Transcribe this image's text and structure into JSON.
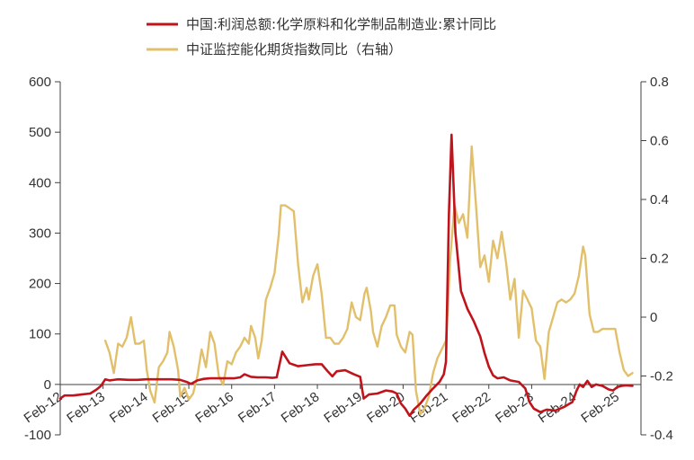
{
  "chart_data": {
    "type": "line",
    "title": "",
    "legend_placement": "top",
    "grid": false,
    "colors": {
      "series1": "#c0141c",
      "series2": "#e2c06b"
    },
    "x_axis": {
      "labels": [
        "Feb-12",
        "Feb-13",
        "Feb-14",
        "Feb-15",
        "Feb-16",
        "Feb-17",
        "Feb-18",
        "Feb-19",
        "Feb-20",
        "Feb-21",
        "Feb-22",
        "Feb-23",
        "Feb-24",
        "Feb-25"
      ],
      "range": [
        2012.0,
        2025.55
      ]
    },
    "y_left": {
      "ticks": [
        600,
        500,
        400,
        300,
        200,
        100,
        0,
        -100
      ],
      "range": [
        -100,
        600
      ]
    },
    "y_right": {
      "ticks": [
        "0.8",
        "0.6",
        "0.4",
        "0.2",
        "0",
        "-0.2",
        "-0.4"
      ],
      "range": [
        -0.4,
        0.8
      ]
    },
    "series": [
      {
        "name": "中国:利润总额:化学原料和化学制品制造业:累计同比",
        "axis": "left",
        "points": [
          [
            2012.0,
            -28
          ],
          [
            2012.1,
            -22
          ],
          [
            2012.3,
            -22
          ],
          [
            2012.5,
            -20
          ],
          [
            2012.7,
            -18
          ],
          [
            2012.85,
            -10
          ],
          [
            2012.95,
            -3
          ],
          [
            2013.05,
            10
          ],
          [
            2013.15,
            8
          ],
          [
            2013.35,
            10
          ],
          [
            2013.6,
            9
          ],
          [
            2013.8,
            9
          ],
          [
            2014.0,
            10
          ],
          [
            2014.3,
            10
          ],
          [
            2014.6,
            10
          ],
          [
            2014.8,
            9
          ],
          [
            2014.95,
            5
          ],
          [
            2015.05,
            1
          ],
          [
            2015.2,
            8
          ],
          [
            2015.35,
            11
          ],
          [
            2015.5,
            12
          ],
          [
            2015.7,
            12
          ],
          [
            2015.9,
            12
          ],
          [
            2016.05,
            12
          ],
          [
            2016.2,
            14
          ],
          [
            2016.3,
            20
          ],
          [
            2016.45,
            15
          ],
          [
            2016.6,
            14
          ],
          [
            2016.8,
            14
          ],
          [
            2016.95,
            13
          ],
          [
            2017.05,
            14
          ],
          [
            2017.18,
            65
          ],
          [
            2017.35,
            42
          ],
          [
            2017.55,
            36
          ],
          [
            2017.75,
            38
          ],
          [
            2017.95,
            40
          ],
          [
            2018.1,
            40
          ],
          [
            2018.25,
            25
          ],
          [
            2018.35,
            16
          ],
          [
            2018.45,
            26
          ],
          [
            2018.65,
            28
          ],
          [
            2018.85,
            20
          ],
          [
            2019.0,
            15
          ],
          [
            2019.08,
            -28
          ],
          [
            2019.2,
            -20
          ],
          [
            2019.4,
            -18
          ],
          [
            2019.6,
            -12
          ],
          [
            2019.75,
            -14
          ],
          [
            2019.85,
            -18
          ],
          [
            2019.95,
            -38
          ],
          [
            2020.05,
            -48
          ],
          [
            2020.15,
            -62
          ],
          [
            2020.25,
            -50
          ],
          [
            2020.4,
            -38
          ],
          [
            2020.55,
            -22
          ],
          [
            2020.7,
            -8
          ],
          [
            2020.85,
            5
          ],
          [
            2020.95,
            20
          ],
          [
            2021.0,
            45
          ],
          [
            2021.07,
            340
          ],
          [
            2021.13,
            495
          ],
          [
            2021.22,
            300
          ],
          [
            2021.35,
            185
          ],
          [
            2021.5,
            150
          ],
          [
            2021.65,
            125
          ],
          [
            2021.8,
            95
          ],
          [
            2021.9,
            62
          ],
          [
            2022.0,
            35
          ],
          [
            2022.1,
            18
          ],
          [
            2022.2,
            12
          ],
          [
            2022.35,
            14
          ],
          [
            2022.5,
            8
          ],
          [
            2022.7,
            5
          ],
          [
            2022.85,
            -8
          ],
          [
            2022.95,
            -35
          ],
          [
            2023.05,
            -48
          ],
          [
            2023.2,
            -55
          ],
          [
            2023.35,
            -50
          ],
          [
            2023.55,
            -52
          ],
          [
            2023.75,
            -45
          ],
          [
            2023.95,
            -35
          ],
          [
            2024.05,
            -12
          ],
          [
            2024.12,
            0
          ],
          [
            2024.2,
            -5
          ],
          [
            2024.3,
            7
          ],
          [
            2024.4,
            -5
          ],
          [
            2024.5,
            0
          ],
          [
            2024.65,
            -3
          ],
          [
            2024.8,
            -10
          ],
          [
            2024.9,
            -12
          ],
          [
            2025.0,
            -5
          ],
          [
            2025.1,
            -3
          ],
          [
            2025.2,
            -2
          ],
          [
            2025.35,
            -3
          ]
        ]
      },
      {
        "name": "中证监控能化期货指数同比（右轴）",
        "axis": "right",
        "points": [
          [
            2013.05,
            -0.08
          ],
          [
            2013.15,
            -0.12
          ],
          [
            2013.25,
            -0.19
          ],
          [
            2013.35,
            -0.09
          ],
          [
            2013.45,
            -0.1
          ],
          [
            2013.55,
            -0.07
          ],
          [
            2013.65,
            0.0
          ],
          [
            2013.75,
            -0.09
          ],
          [
            2013.85,
            -0.09
          ],
          [
            2013.95,
            -0.08
          ],
          [
            2014.02,
            -0.18
          ],
          [
            2014.1,
            -0.25
          ],
          [
            2014.2,
            -0.29
          ],
          [
            2014.3,
            -0.17
          ],
          [
            2014.4,
            -0.15
          ],
          [
            2014.5,
            -0.12
          ],
          [
            2014.55,
            -0.05
          ],
          [
            2014.65,
            -0.1
          ],
          [
            2014.75,
            -0.18
          ],
          [
            2014.8,
            -0.27
          ],
          [
            2014.9,
            -0.24
          ],
          [
            2015.0,
            -0.28
          ],
          [
            2015.1,
            -0.26
          ],
          [
            2015.2,
            -0.2
          ],
          [
            2015.3,
            -0.11
          ],
          [
            2015.4,
            -0.17
          ],
          [
            2015.5,
            -0.05
          ],
          [
            2015.6,
            -0.09
          ],
          [
            2015.7,
            -0.2
          ],
          [
            2015.8,
            -0.23
          ],
          [
            2015.9,
            -0.15
          ],
          [
            2016.0,
            -0.16
          ],
          [
            2016.1,
            -0.12
          ],
          [
            2016.2,
            -0.1
          ],
          [
            2016.3,
            -0.07
          ],
          [
            2016.4,
            -0.09
          ],
          [
            2016.45,
            -0.03
          ],
          [
            2016.55,
            -0.07
          ],
          [
            2016.62,
            -0.14
          ],
          [
            2016.7,
            -0.08
          ],
          [
            2016.8,
            0.06
          ],
          [
            2016.9,
            0.1
          ],
          [
            2017.0,
            0.15
          ],
          [
            2017.1,
            0.28
          ],
          [
            2017.15,
            0.38
          ],
          [
            2017.25,
            0.38
          ],
          [
            2017.35,
            0.37
          ],
          [
            2017.45,
            0.36
          ],
          [
            2017.55,
            0.18
          ],
          [
            2017.65,
            0.05
          ],
          [
            2017.75,
            0.1
          ],
          [
            2017.8,
            0.06
          ],
          [
            2017.9,
            0.14
          ],
          [
            2018.0,
            0.18
          ],
          [
            2018.1,
            0.08
          ],
          [
            2018.2,
            -0.07
          ],
          [
            2018.3,
            -0.07
          ],
          [
            2018.4,
            -0.09
          ],
          [
            2018.5,
            -0.09
          ],
          [
            2018.6,
            -0.07
          ],
          [
            2018.7,
            -0.04
          ],
          [
            2018.8,
            0.05
          ],
          [
            2018.9,
            0.0
          ],
          [
            2019.0,
            -0.01
          ],
          [
            2019.1,
            0.08
          ],
          [
            2019.15,
            0.1
          ],
          [
            2019.25,
            0.02
          ],
          [
            2019.3,
            -0.05
          ],
          [
            2019.4,
            -0.1
          ],
          [
            2019.5,
            -0.03
          ],
          [
            2019.6,
            0.0
          ],
          [
            2019.7,
            0.04
          ],
          [
            2019.8,
            0.04
          ],
          [
            2019.85,
            -0.06
          ],
          [
            2019.95,
            -0.1
          ],
          [
            2020.05,
            -0.12
          ],
          [
            2020.15,
            -0.05
          ],
          [
            2020.22,
            -0.06
          ],
          [
            2020.3,
            -0.25
          ],
          [
            2020.4,
            -0.33
          ],
          [
            2020.5,
            -0.31
          ],
          [
            2020.6,
            -0.27
          ],
          [
            2020.7,
            -0.19
          ],
          [
            2020.8,
            -0.14
          ],
          [
            2020.9,
            -0.11
          ],
          [
            2021.0,
            -0.08
          ],
          [
            2021.05,
            0.05
          ],
          [
            2021.1,
            0.2
          ],
          [
            2021.2,
            0.38
          ],
          [
            2021.3,
            0.32
          ],
          [
            2021.4,
            0.35
          ],
          [
            2021.5,
            0.27
          ],
          [
            2021.6,
            0.58
          ],
          [
            2021.7,
            0.38
          ],
          [
            2021.8,
            0.17
          ],
          [
            2021.9,
            0.21
          ],
          [
            2022.0,
            0.12
          ],
          [
            2022.1,
            0.26
          ],
          [
            2022.2,
            0.2
          ],
          [
            2022.3,
            0.29
          ],
          [
            2022.4,
            0.19
          ],
          [
            2022.5,
            0.06
          ],
          [
            2022.6,
            0.13
          ],
          [
            2022.7,
            -0.07
          ],
          [
            2022.8,
            0.09
          ],
          [
            2022.9,
            0.06
          ],
          [
            2023.0,
            0.03
          ],
          [
            2023.1,
            -0.08
          ],
          [
            2023.2,
            -0.1
          ],
          [
            2023.3,
            -0.21
          ],
          [
            2023.4,
            -0.05
          ],
          [
            2023.5,
            0.0
          ],
          [
            2023.6,
            0.05
          ],
          [
            2023.7,
            0.06
          ],
          [
            2023.8,
            0.05
          ],
          [
            2023.9,
            0.06
          ],
          [
            2024.0,
            0.08
          ],
          [
            2024.1,
            0.14
          ],
          [
            2024.2,
            0.24
          ],
          [
            2024.25,
            0.21
          ],
          [
            2024.35,
            0.01
          ],
          [
            2024.45,
            -0.05
          ],
          [
            2024.55,
            -0.05
          ],
          [
            2024.65,
            -0.04
          ],
          [
            2024.75,
            -0.04
          ],
          [
            2024.85,
            -0.04
          ],
          [
            2024.95,
            -0.04
          ],
          [
            2025.05,
            -0.12
          ],
          [
            2025.15,
            -0.18
          ],
          [
            2025.25,
            -0.2
          ],
          [
            2025.35,
            -0.19
          ]
        ]
      }
    ]
  }
}
